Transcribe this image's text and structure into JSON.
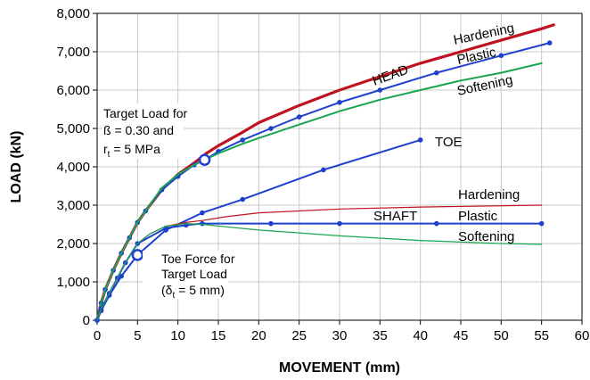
{
  "chart_data": {
    "type": "line",
    "xlabel": "MOVEMENT (mm)",
    "ylabel": "LOAD (kN)",
    "xlim": [
      0,
      60
    ],
    "ylim": [
      0,
      8000
    ],
    "x_ticks": [
      "0",
      "5",
      "10",
      "15",
      "20",
      "25",
      "30",
      "35",
      "40",
      "45",
      "50",
      "55",
      "60"
    ],
    "y_ticks": [
      "0",
      "1,000",
      "2,000",
      "3,000",
      "4,000",
      "5,000",
      "6,000",
      "7,000",
      "8,000"
    ],
    "grid": true,
    "series": [
      {
        "name": "Hardening",
        "group": "head",
        "color": "#c0121f",
        "width": 3.2,
        "markers": false,
        "x": [
          0,
          0.5,
          1,
          2,
          3,
          4,
          5,
          6,
          8,
          10,
          12,
          13.5,
          15,
          18,
          20,
          25,
          30,
          35,
          40,
          45,
          50,
          55,
          56.5
        ],
        "y": [
          0,
          450,
          800,
          1300,
          1750,
          2150,
          2550,
          2850,
          3400,
          3800,
          4100,
          4350,
          4550,
          4900,
          5150,
          5600,
          6000,
          6350,
          6700,
          7000,
          7300,
          7600,
          7700
        ]
      },
      {
        "name": "Plastic",
        "group": "head",
        "color": "#1f3fcf",
        "width": 2,
        "markers": true,
        "x": [
          0,
          0.5,
          1,
          2,
          3,
          4,
          5,
          6,
          8,
          10,
          12,
          13.5,
          15,
          18,
          21.5,
          25,
          30,
          35,
          42,
          50,
          56
        ],
        "y": [
          0,
          450,
          800,
          1300,
          1750,
          2150,
          2550,
          2850,
          3400,
          3750,
          4050,
          4200,
          4400,
          4700,
          5000,
          5300,
          5680,
          6000,
          6450,
          6900,
          7230
        ]
      },
      {
        "name": "Softening",
        "group": "head",
        "color": "#19a64f",
        "width": 2,
        "markers": false,
        "x": [
          0,
          0.5,
          1,
          2,
          3,
          4,
          5,
          6,
          8,
          10,
          12,
          13.5,
          15,
          18,
          20,
          25,
          30,
          35,
          40,
          45,
          50,
          55
        ],
        "y": [
          0,
          450,
          800,
          1300,
          1750,
          2150,
          2550,
          2850,
          3450,
          3800,
          4050,
          4200,
          4350,
          4600,
          4750,
          5100,
          5450,
          5750,
          6000,
          6250,
          6450,
          6700
        ]
      },
      {
        "name": "TOE",
        "group": "toe",
        "color": "#1f3fcf",
        "width": 2,
        "markers": true,
        "x": [
          0,
          0.5,
          1.5,
          3,
          5,
          8.5,
          13,
          18,
          28,
          40
        ],
        "y": [
          0,
          250,
          650,
          1150,
          1700,
          2350,
          2800,
          3150,
          3920,
          4700
        ]
      },
      {
        "name": "Hardening",
        "group": "shaft",
        "color": "#c0121f",
        "width": 1.2,
        "markers": false,
        "x": [
          0,
          0.5,
          1.5,
          2.5,
          3.5,
          5,
          6.5,
          8.5,
          11,
          13,
          16,
          20,
          30,
          40,
          55
        ],
        "y": [
          0,
          300,
          700,
          1100,
          1500,
          2000,
          2250,
          2450,
          2550,
          2600,
          2700,
          2800,
          2900,
          2950,
          3000
        ]
      },
      {
        "name": "Plastic",
        "group": "shaft",
        "color": "#1f3fcf",
        "width": 2,
        "markers": true,
        "x": [
          0,
          0.5,
          1.5,
          2.5,
          3.5,
          5,
          8.5,
          11,
          13,
          21.5,
          30,
          42,
          55
        ],
        "y": [
          0,
          300,
          700,
          1100,
          1500,
          2000,
          2400,
          2480,
          2520,
          2520,
          2520,
          2520,
          2520
        ]
      },
      {
        "name": "Softening",
        "group": "shaft",
        "color": "#19a64f",
        "width": 1.2,
        "markers": false,
        "x": [
          0,
          0.5,
          1.5,
          2.5,
          3.5,
          5,
          6.5,
          8.5,
          11,
          13,
          20,
          30,
          40,
          50,
          55
        ],
        "y": [
          0,
          300,
          700,
          1100,
          1500,
          2000,
          2250,
          2450,
          2520,
          2500,
          2350,
          2200,
          2080,
          2000,
          1980
        ]
      }
    ],
    "target_points": [
      {
        "x": 13.3,
        "y": 4180
      },
      {
        "x": 5,
        "y": 1700
      }
    ],
    "labels": {
      "head": "HEAD",
      "toe": "TOE",
      "shaft": "SHAFT",
      "head_hardening": "Hardening",
      "head_plastic": "Plastic",
      "head_softening": "Softening",
      "shaft_hardening": "Hardening",
      "shaft_plastic": "Plastic",
      "shaft_softening": "Softening"
    },
    "annotations": {
      "target_load": [
        "Target Load for",
        "ß = 0.30 and",
        "r",
        "t",
        " = 5 MPa"
      ],
      "toe_force": [
        "Toe Force for",
        "Target Load",
        "(δ",
        "t",
        " = 5 mm)"
      ]
    }
  }
}
